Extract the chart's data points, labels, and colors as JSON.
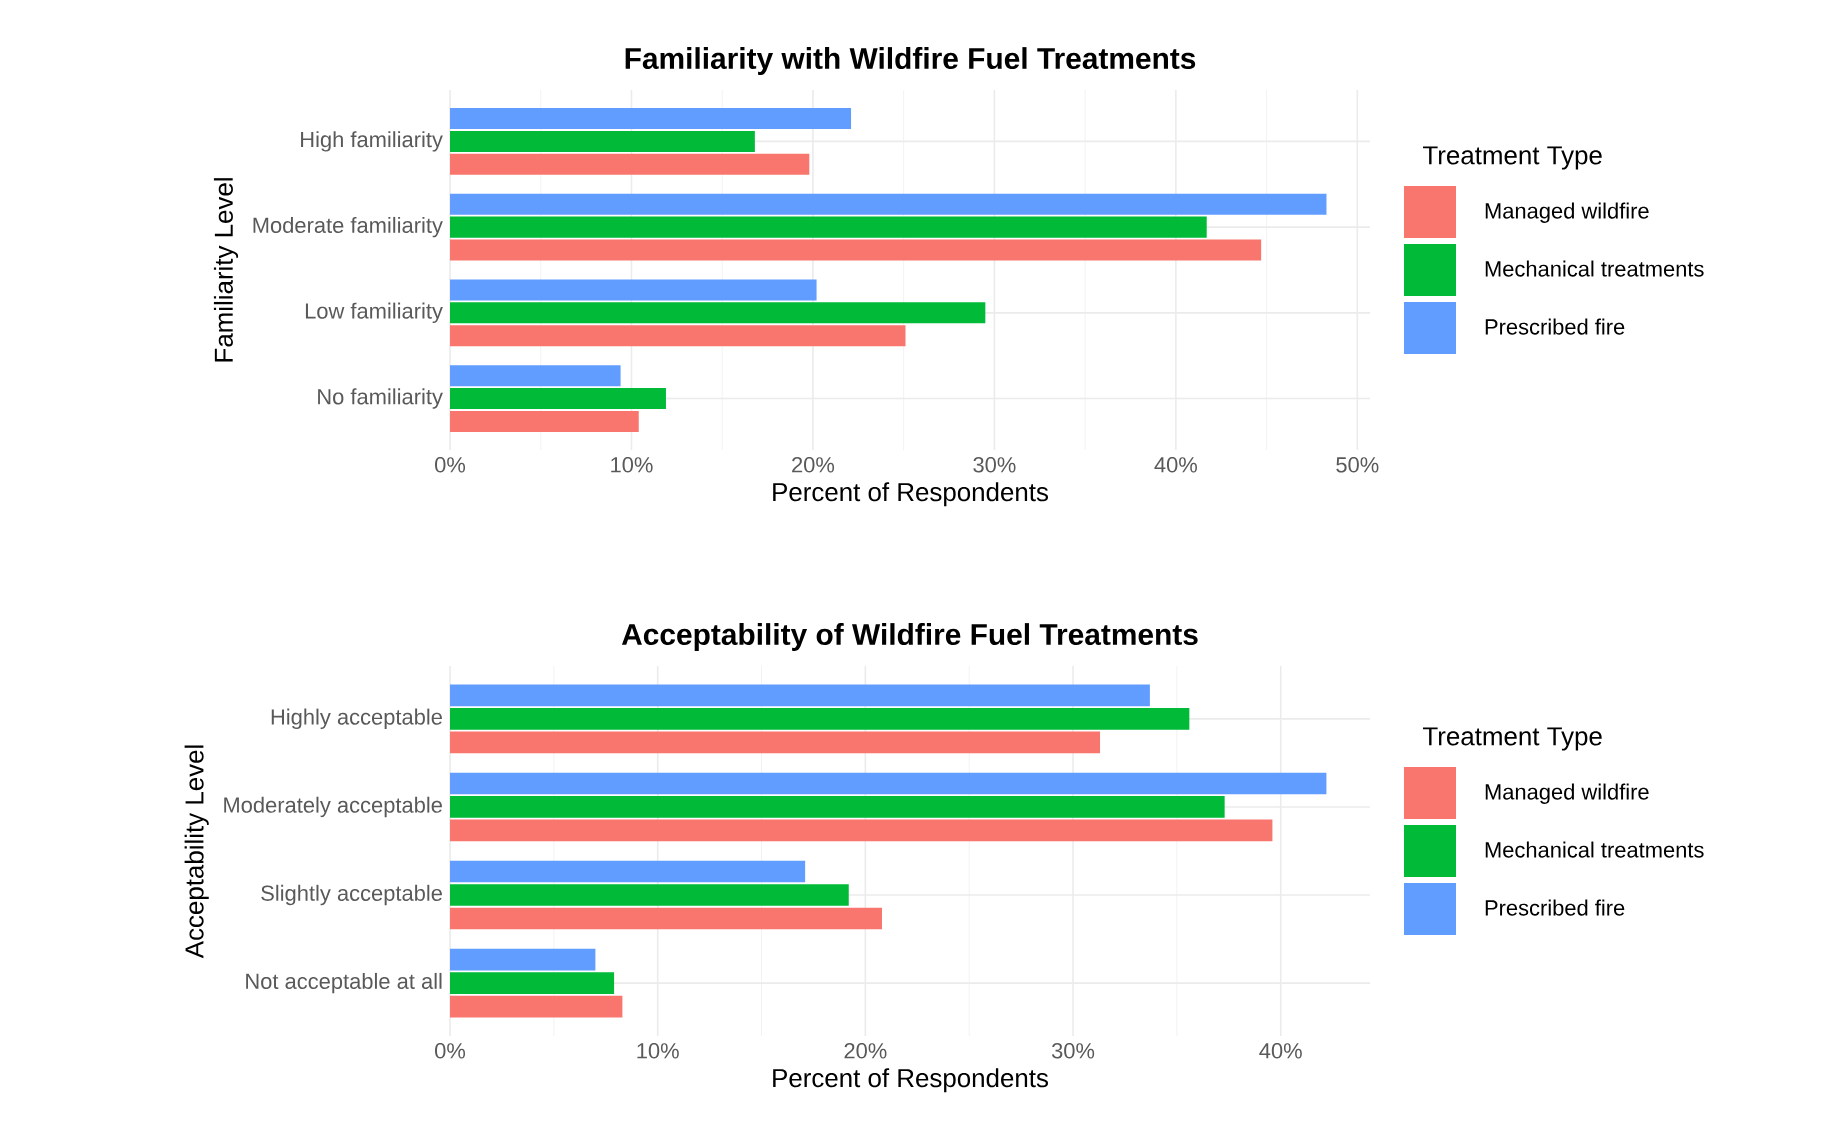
{
  "chart_data": [
    {
      "type": "bar",
      "orientation": "horizontal",
      "title": "Familiarity with Wildfire Fuel Treatments",
      "xlabel": "Percent of Respondents",
      "ylabel": "Familiarity Level",
      "legend_title": "Treatment Type",
      "legend": "right",
      "grid": true,
      "categories": [
        "High familiarity",
        "Moderate familiarity",
        "Low familiarity",
        "No familiarity"
      ],
      "xlim": [
        0,
        50.7
      ],
      "xticks": [
        {
          "value": 0,
          "label": "0%"
        },
        {
          "value": 10,
          "label": "10%"
        },
        {
          "value": 20,
          "label": "20%"
        },
        {
          "value": 30,
          "label": "30%"
        },
        {
          "value": 40,
          "label": "40%"
        },
        {
          "value": 50,
          "label": "50%"
        }
      ],
      "series": [
        {
          "name": "Managed wildfire",
          "color": "#f8766d",
          "values": [
            19.8,
            44.7,
            25.1,
            10.4
          ]
        },
        {
          "name": "Mechanical treatments",
          "color": "#00ba38",
          "values": [
            16.8,
            41.7,
            29.5,
            11.9
          ]
        },
        {
          "name": "Prescribed fire",
          "color": "#619cff",
          "values": [
            22.1,
            48.3,
            20.2,
            9.4
          ]
        }
      ]
    },
    {
      "type": "bar",
      "orientation": "horizontal",
      "title": "Acceptability of Wildfire Fuel Treatments",
      "xlabel": "Percent of Respondents",
      "ylabel": "Acceptability Level",
      "legend_title": "Treatment Type",
      "legend": "right",
      "grid": true,
      "categories": [
        "Highly acceptable",
        "Moderately acceptable",
        "Slightly acceptable",
        "Not acceptable at all"
      ],
      "xlim": [
        0,
        44.3
      ],
      "xticks": [
        {
          "value": 0,
          "label": "0%"
        },
        {
          "value": 10,
          "label": "10%"
        },
        {
          "value": 20,
          "label": "20%"
        },
        {
          "value": 30,
          "label": "30%"
        },
        {
          "value": 40,
          "label": "40%"
        }
      ],
      "series": [
        {
          "name": "Managed wildfire",
          "color": "#f8766d",
          "values": [
            31.3,
            39.6,
            20.8,
            8.3
          ]
        },
        {
          "name": "Mechanical treatments",
          "color": "#00ba38",
          "values": [
            35.6,
            37.3,
            19.2,
            7.9
          ]
        },
        {
          "name": "Prescribed fire",
          "color": "#619cff",
          "values": [
            33.7,
            42.2,
            17.1,
            7.0
          ]
        }
      ]
    }
  ]
}
